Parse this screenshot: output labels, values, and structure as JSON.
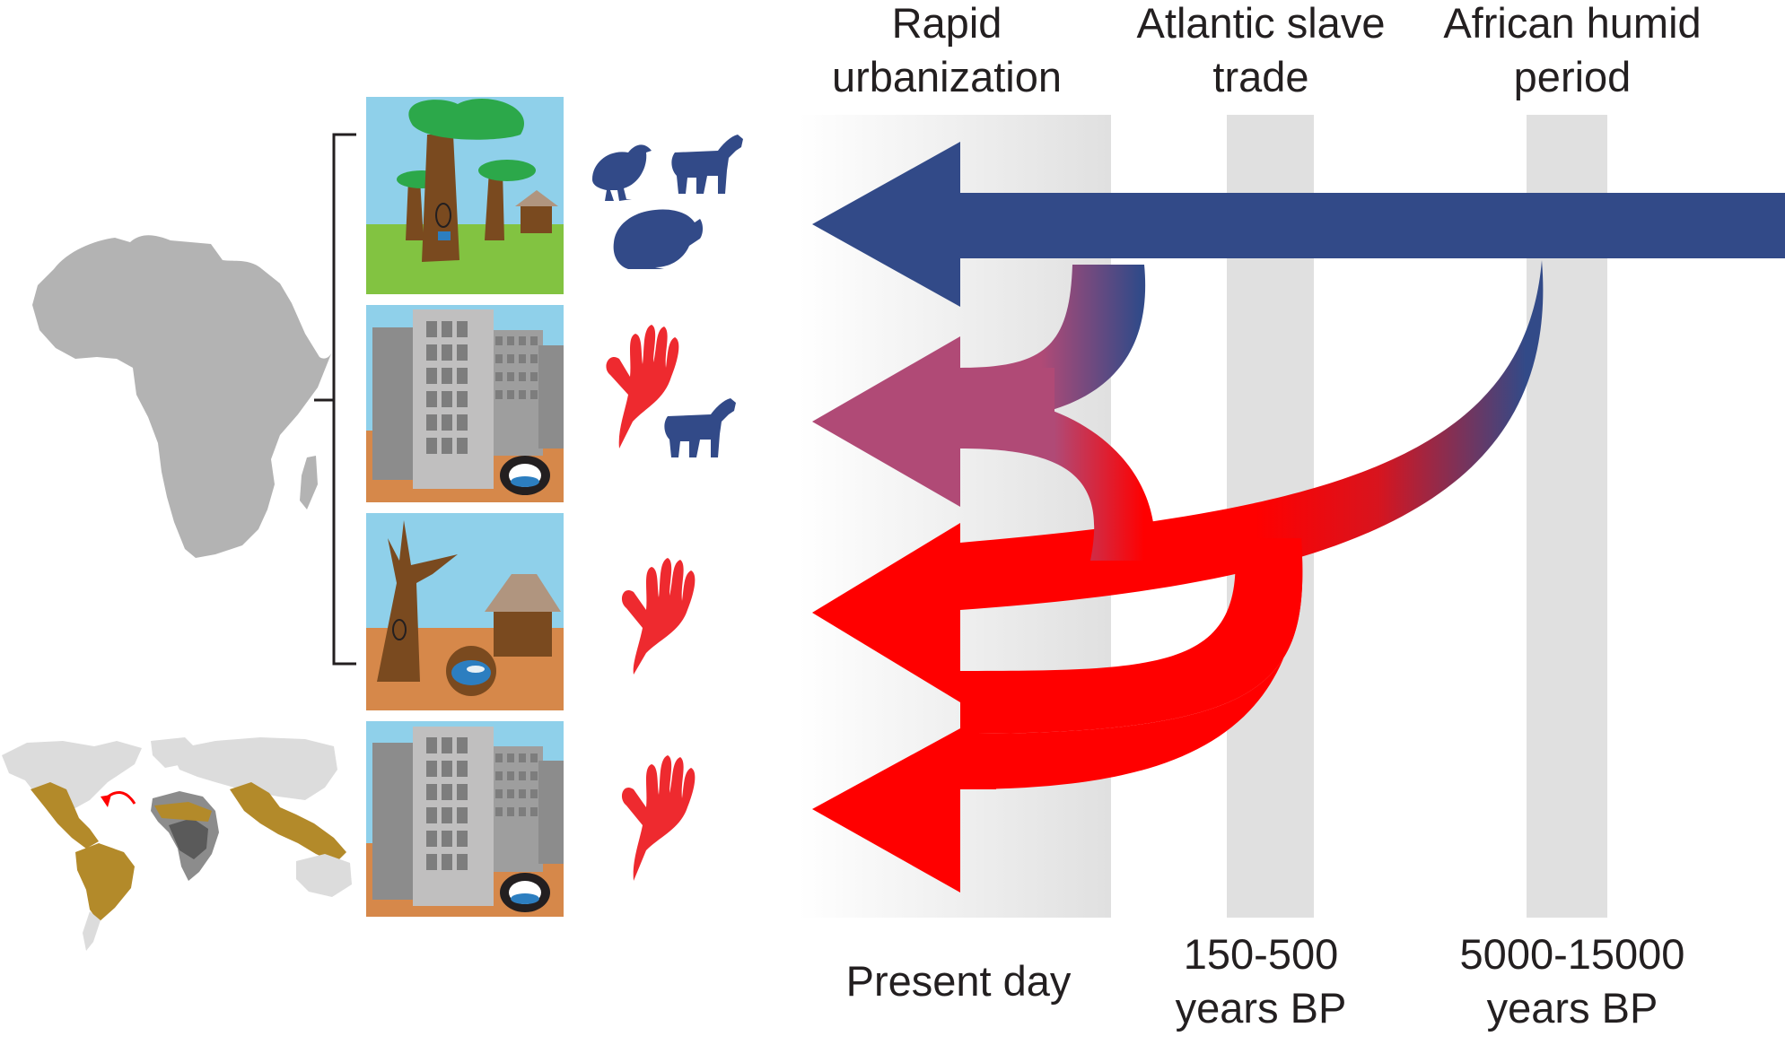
{
  "periods": {
    "urbanization": {
      "line1": "Rapid",
      "line2": "urbanization"
    },
    "slave_trade": {
      "line1": "Atlantic slave",
      "line2": "trade"
    },
    "humid_period": {
      "line1": "African humid",
      "line2": "period"
    }
  },
  "time_labels": {
    "present": "Present day",
    "slave_trade": {
      "line1": "150-500",
      "line2": "years BP"
    },
    "humid_period": {
      "line1": "5000-15000",
      "line2": "years BP"
    }
  },
  "colors": {
    "zoophilic": "#324a88",
    "anthropophilic": "#ff0000",
    "hand": "#ee2a2f",
    "mixed": "#b04a76",
    "sky": "#8fd0ea",
    "grass": "#82c341",
    "soil": "#d6884a",
    "tree": "#7a4a1f",
    "canopy": "#2ca84a",
    "building": "#c0bfbf",
    "africa": "#b3b3b3",
    "range": "#b38a2a"
  },
  "panels": [
    {
      "setting": "forest",
      "hosts": [
        "bird-icon",
        "goat-icon",
        "rodent-icon"
      ]
    },
    {
      "setting": "city",
      "hosts": [
        "human-hand-icon",
        "goat-icon"
      ]
    },
    {
      "setting": "village",
      "hosts": [
        "human-hand-icon"
      ]
    },
    {
      "setting": "city",
      "hosts": [
        "human-hand-icon"
      ]
    }
  ]
}
